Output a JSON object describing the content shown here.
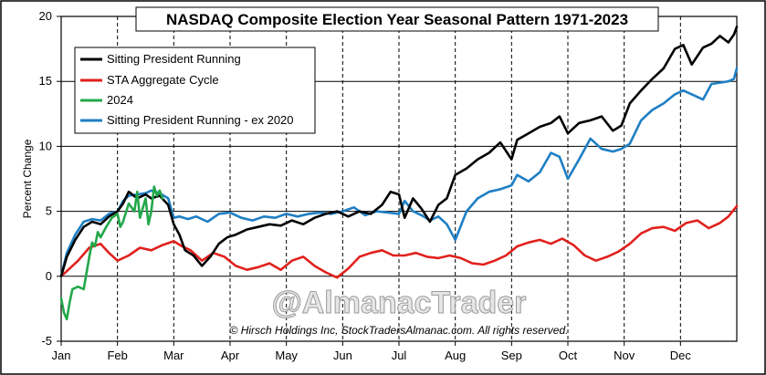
{
  "chart_data": {
    "type": "line",
    "title": "NASDAQ Composite Election Year Seasonal Pattern 1971-2023",
    "ylabel": "Percent Change",
    "xlabel": "",
    "ylim": [
      -5,
      20
    ],
    "yticks": [
      -5,
      0,
      5,
      10,
      15,
      20
    ],
    "months": [
      "Jan",
      "Feb",
      "Mar",
      "Apr",
      "May",
      "Jun",
      "Jul",
      "Aug",
      "Sep",
      "Oct",
      "Nov",
      "Dec"
    ],
    "x_unit": "month",
    "xlim": [
      0,
      12
    ],
    "grid": "vertical dashed at month boundaries",
    "legend_position": "top-left",
    "watermark": "@AlmanacTrader",
    "copyright": "© Hirsch Holdings Inc, StockTradersAlmanac.com. All rights reserved.",
    "series": [
      {
        "name": "Sitting President Running",
        "color": "#000000",
        "x": [
          0,
          0.1,
          0.25,
          0.4,
          0.55,
          0.7,
          0.85,
          1.0,
          1.1,
          1.2,
          1.35,
          1.5,
          1.6,
          1.75,
          1.9,
          2.0,
          2.1,
          2.2,
          2.35,
          2.5,
          2.65,
          2.8,
          2.95,
          3.1,
          3.3,
          3.5,
          3.7,
          3.9,
          4.1,
          4.3,
          4.5,
          4.7,
          4.9,
          5.1,
          5.3,
          5.5,
          5.7,
          5.85,
          6.0,
          6.1,
          6.25,
          6.4,
          6.55,
          6.7,
          6.85,
          7.0,
          7.2,
          7.4,
          7.6,
          7.8,
          8.0,
          8.1,
          8.3,
          8.5,
          8.7,
          8.85,
          9.0,
          9.2,
          9.4,
          9.6,
          9.8,
          9.95,
          10.1,
          10.3,
          10.5,
          10.7,
          10.9,
          11.05,
          11.2,
          11.4,
          11.55,
          11.7,
          11.85,
          11.95,
          12.0
        ],
        "y": [
          0,
          1.5,
          2.8,
          3.8,
          4.2,
          4.0,
          4.6,
          5.0,
          5.6,
          6.5,
          6.0,
          6.3,
          6.0,
          6.2,
          5.5,
          4.0,
          3.2,
          2.0,
          1.6,
          0.8,
          1.5,
          2.5,
          3.0,
          3.2,
          3.6,
          3.8,
          4.0,
          3.9,
          4.3,
          4.0,
          4.5,
          4.8,
          5.0,
          4.6,
          5.0,
          4.8,
          5.5,
          6.5,
          6.3,
          4.5,
          6.0,
          5.2,
          4.2,
          5.5,
          6.0,
          7.8,
          8.3,
          9.0,
          9.5,
          10.3,
          9.0,
          10.5,
          11.0,
          11.5,
          11.8,
          12.3,
          11.0,
          11.8,
          12.0,
          12.3,
          11.2,
          11.6,
          13.3,
          14.3,
          15.2,
          16.0,
          17.5,
          17.8,
          16.3,
          17.6,
          17.9,
          18.5,
          18.0,
          18.6,
          19.2
        ]
      },
      {
        "name": "STA Aggregate Cycle",
        "color": "#e0211d",
        "x": [
          0,
          0.15,
          0.3,
          0.5,
          0.7,
          0.85,
          1.0,
          1.2,
          1.4,
          1.6,
          1.8,
          2.0,
          2.15,
          2.3,
          2.5,
          2.7,
          2.9,
          3.1,
          3.3,
          3.5,
          3.7,
          3.9,
          4.1,
          4.3,
          4.5,
          4.7,
          4.9,
          5.1,
          5.3,
          5.5,
          5.7,
          5.9,
          6.1,
          6.3,
          6.5,
          6.7,
          6.9,
          7.1,
          7.3,
          7.5,
          7.7,
          7.9,
          8.1,
          8.3,
          8.5,
          8.7,
          8.9,
          9.1,
          9.3,
          9.5,
          9.7,
          9.9,
          10.1,
          10.3,
          10.5,
          10.7,
          10.9,
          11.1,
          11.3,
          11.5,
          11.7,
          11.85,
          12.0
        ],
        "y": [
          0,
          0.6,
          1.2,
          2.2,
          2.5,
          1.8,
          1.2,
          1.6,
          2.2,
          2.0,
          2.4,
          2.7,
          2.3,
          2.0,
          1.2,
          1.8,
          1.5,
          0.8,
          0.5,
          0.7,
          1.0,
          0.5,
          1.2,
          1.5,
          0.8,
          0.3,
          -0.1,
          0.6,
          1.5,
          1.8,
          2.0,
          1.6,
          1.6,
          1.8,
          1.5,
          1.4,
          1.6,
          1.4,
          1.0,
          0.9,
          1.2,
          1.6,
          2.3,
          2.6,
          2.8,
          2.5,
          2.9,
          2.4,
          1.6,
          1.2,
          1.5,
          1.9,
          2.5,
          3.3,
          3.7,
          3.8,
          3.5,
          4.1,
          4.3,
          3.7,
          4.1,
          4.6,
          5.4
        ]
      },
      {
        "name": "2024",
        "color": "#22a84a",
        "x": [
          0,
          0.05,
          0.1,
          0.15,
          0.2,
          0.3,
          0.4,
          0.5,
          0.55,
          0.6,
          0.65,
          0.7,
          0.8,
          0.9,
          1.0,
          1.05,
          1.1,
          1.2,
          1.3,
          1.35,
          1.4,
          1.5,
          1.55,
          1.6,
          1.65,
          1.7,
          1.75,
          1.8
        ],
        "y": [
          -1.7,
          -2.8,
          -3.3,
          -2.0,
          -1.0,
          -0.8,
          -1.0,
          1.5,
          2.6,
          2.3,
          3.4,
          3.0,
          3.8,
          4.5,
          4.8,
          3.8,
          4.2,
          5.6,
          5.0,
          6.5,
          4.5,
          6.0,
          4.0,
          5.0,
          6.9,
          6.2,
          6.6,
          6.0
        ]
      },
      {
        "name": "Sitting President Running - ex 2020",
        "color": "#1e7fc4",
        "x": [
          0,
          0.1,
          0.25,
          0.4,
          0.55,
          0.7,
          0.85,
          1.0,
          1.1,
          1.2,
          1.35,
          1.5,
          1.6,
          1.75,
          1.9,
          2.0,
          2.1,
          2.25,
          2.4,
          2.6,
          2.8,
          3.0,
          3.2,
          3.4,
          3.6,
          3.8,
          4.0,
          4.2,
          4.4,
          4.6,
          4.8,
          5.0,
          5.2,
          5.4,
          5.6,
          5.8,
          6.0,
          6.1,
          6.25,
          6.4,
          6.55,
          6.7,
          6.85,
          7.0,
          7.2,
          7.4,
          7.6,
          7.8,
          8.0,
          8.1,
          8.3,
          8.5,
          8.7,
          8.85,
          9.0,
          9.2,
          9.4,
          9.6,
          9.8,
          9.95,
          10.1,
          10.3,
          10.5,
          10.7,
          10.9,
          11.05,
          11.2,
          11.4,
          11.55,
          11.7,
          11.85,
          11.95,
          12.0
        ],
        "y": [
          0,
          1.8,
          3.2,
          4.2,
          4.4,
          4.3,
          4.8,
          5.0,
          5.8,
          6.2,
          6.3,
          6.4,
          6.6,
          6.4,
          6.0,
          4.5,
          4.6,
          4.4,
          4.6,
          4.2,
          4.8,
          4.9,
          4.5,
          4.3,
          4.6,
          4.5,
          4.8,
          4.6,
          4.8,
          4.9,
          4.8,
          5.0,
          5.3,
          4.7,
          5.0,
          4.9,
          4.8,
          5.8,
          5.0,
          4.7,
          4.3,
          4.6,
          4.0,
          2.8,
          5.0,
          6.0,
          6.5,
          6.7,
          7.0,
          7.8,
          7.3,
          8.0,
          9.5,
          9.2,
          7.5,
          9.0,
          10.6,
          9.8,
          9.6,
          9.8,
          10.2,
          12.0,
          12.8,
          13.3,
          14.0,
          14.3,
          14.0,
          13.6,
          14.8,
          14.9,
          15.0,
          15.2,
          16.0
        ]
      }
    ]
  }
}
